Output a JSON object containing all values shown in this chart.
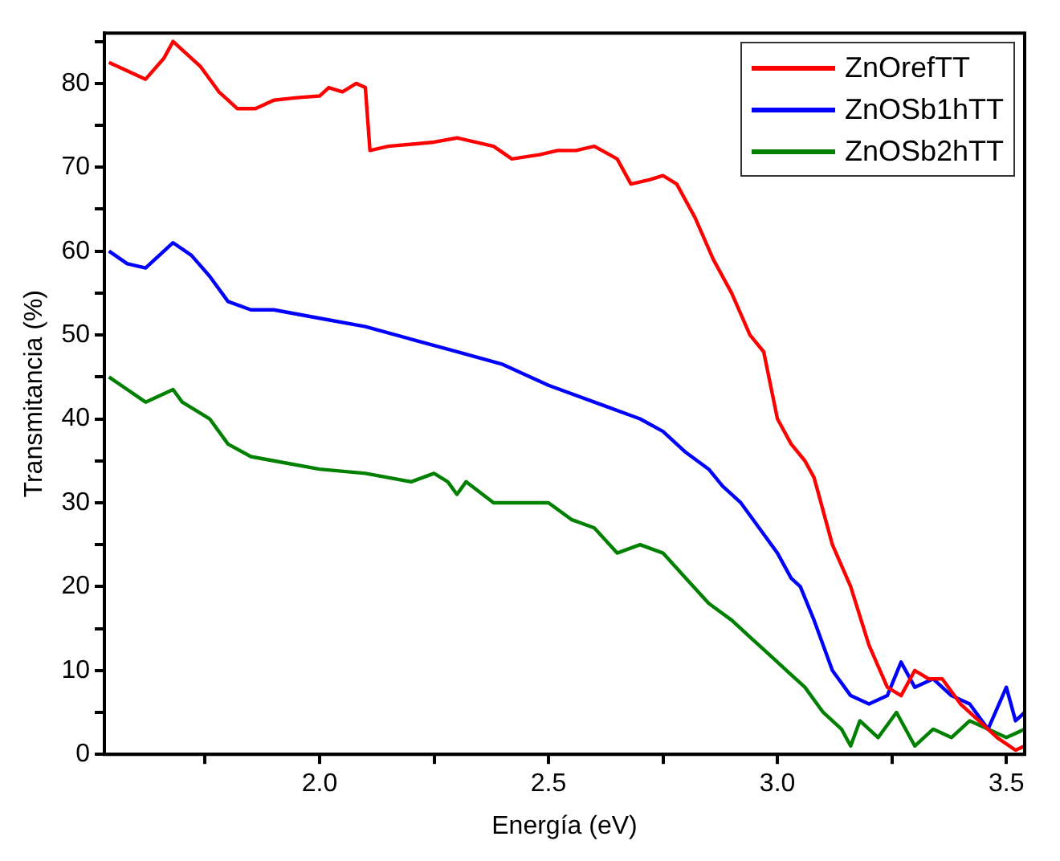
{
  "chart_data": {
    "type": "line",
    "xlabel": "Energía (eV)",
    "ylabel": "Transmitancia (%)",
    "xlim": [
      1.53,
      3.54
    ],
    "ylim": [
      0,
      86
    ],
    "xticks": [
      {
        "value": 1.75,
        "label": null
      },
      {
        "value": 2,
        "label": "2.0"
      },
      {
        "value": 2.25,
        "label": null
      },
      {
        "value": 2.5,
        "label": "2.5"
      },
      {
        "value": 2.75,
        "label": null
      },
      {
        "value": 3,
        "label": "3.0"
      },
      {
        "value": 3.25,
        "label": null
      },
      {
        "value": 3.5,
        "label": "3.5"
      }
    ],
    "yticks": [
      0,
      {
        "value": 5,
        "label": null
      },
      10,
      {
        "value": 15,
        "label": null
      },
      20,
      {
        "value": 25,
        "label": null
      },
      30,
      {
        "value": 35,
        "label": null
      },
      40,
      {
        "value": 45,
        "label": null
      },
      50,
      {
        "value": 55,
        "label": null
      },
      60,
      {
        "value": 65,
        "label": null
      },
      70,
      {
        "value": 75,
        "label": null
      },
      80,
      {
        "value": 85,
        "label": null
      }
    ],
    "grid": false,
    "legend": "top right",
    "marker": "none",
    "line_style": "solid",
    "series": [
      {
        "name": "ZnOrefTT",
        "color": "#ff0000",
        "x": [
          1.54,
          1.58,
          1.62,
          1.66,
          1.68,
          1.7,
          1.74,
          1.78,
          1.8,
          1.82,
          1.86,
          1.9,
          1.95,
          2.0,
          2.02,
          2.05,
          2.08,
          2.1,
          2.11,
          2.15,
          2.25,
          2.3,
          2.38,
          2.42,
          2.48,
          2.52,
          2.56,
          2.6,
          2.65,
          2.68,
          2.72,
          2.75,
          2.78,
          2.82,
          2.86,
          2.9,
          2.94,
          2.97,
          3.0,
          3.03,
          3.06,
          3.08,
          3.12,
          3.16,
          3.2,
          3.24,
          3.27,
          3.3,
          3.33,
          3.36,
          3.4,
          3.44,
          3.48,
          3.52,
          3.54
        ],
        "values": [
          82.5,
          81.5,
          80.5,
          83,
          85,
          84,
          82,
          79,
          78,
          77,
          77,
          78,
          78.3,
          78.5,
          79.5,
          79,
          80,
          79.5,
          72,
          72.5,
          73,
          73.5,
          72.5,
          71,
          71.5,
          72,
          72,
          72.5,
          71,
          68,
          68.5,
          69,
          68,
          64,
          59,
          55,
          50,
          48,
          40,
          37,
          35,
          33,
          25,
          20,
          13,
          8,
          7,
          10,
          9,
          9,
          6,
          4,
          2,
          0.5,
          1
        ]
      },
      {
        "name": "ZnOSb1hTT",
        "color": "#0000ff",
        "x": [
          1.54,
          1.58,
          1.62,
          1.66,
          1.68,
          1.72,
          1.76,
          1.8,
          1.85,
          1.9,
          2.0,
          2.1,
          2.2,
          2.3,
          2.4,
          2.5,
          2.6,
          2.7,
          2.75,
          2.8,
          2.85,
          2.88,
          2.92,
          2.96,
          3.0,
          3.03,
          3.05,
          3.08,
          3.12,
          3.16,
          3.2,
          3.24,
          3.27,
          3.3,
          3.34,
          3.38,
          3.42,
          3.46,
          3.5,
          3.52,
          3.54
        ],
        "values": [
          60,
          58.5,
          58,
          60,
          61,
          59.5,
          57,
          54,
          53,
          53,
          52,
          51,
          49.5,
          48,
          46.5,
          44,
          42,
          40,
          38.5,
          36,
          34,
          32,
          30,
          27,
          24,
          21,
          20,
          16,
          10,
          7,
          6,
          7,
          11,
          8,
          9,
          7,
          6,
          3,
          8,
          4,
          5
        ]
      },
      {
        "name": "ZnOSb2hTT",
        "color": "#008000",
        "x": [
          1.54,
          1.58,
          1.62,
          1.66,
          1.68,
          1.7,
          1.76,
          1.8,
          1.85,
          1.9,
          2.0,
          2.1,
          2.2,
          2.25,
          2.28,
          2.3,
          2.32,
          2.38,
          2.45,
          2.5,
          2.55,
          2.6,
          2.65,
          2.7,
          2.75,
          2.8,
          2.85,
          2.9,
          2.94,
          2.98,
          3.02,
          3.06,
          3.1,
          3.14,
          3.16,
          3.18,
          3.22,
          3.26,
          3.3,
          3.34,
          3.38,
          3.42,
          3.46,
          3.5,
          3.54
        ],
        "values": [
          45,
          43.5,
          42,
          43,
          43.5,
          42,
          40,
          37,
          35.5,
          35,
          34,
          33.5,
          32.5,
          33.5,
          32.5,
          31,
          32.5,
          30,
          30,
          30,
          28,
          27,
          24,
          25,
          24,
          21,
          18,
          16,
          14,
          12,
          10,
          8,
          5,
          3,
          1,
          4,
          2,
          5,
          1,
          3,
          2,
          4,
          3,
          2,
          3
        ]
      }
    ]
  }
}
